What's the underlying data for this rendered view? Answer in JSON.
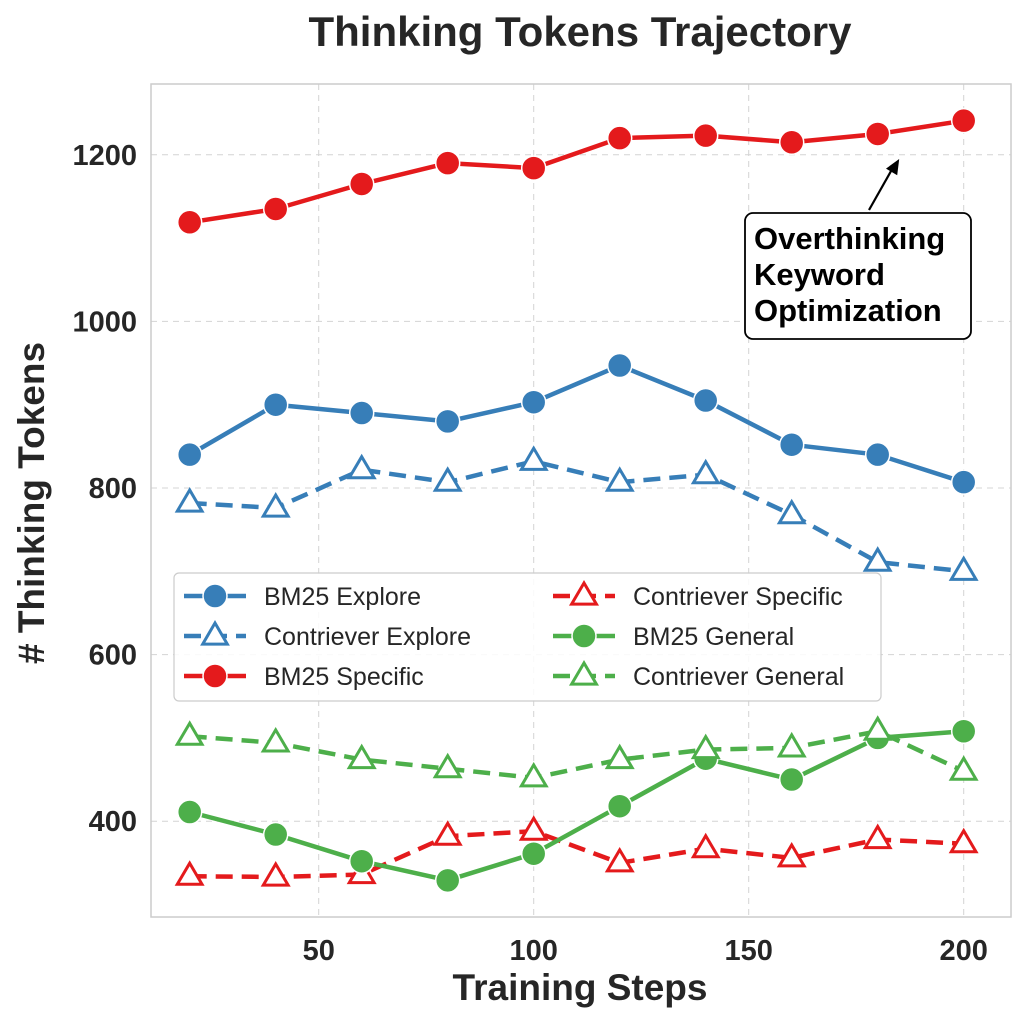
{
  "chart_data": {
    "type": "line",
    "title": "Thinking Tokens Trajectory",
    "xlabel": "Training Steps",
    "ylabel": "# Thinking Tokens",
    "xlim": [
      11,
      211
    ],
    "ylim": [
      285,
      1285
    ],
    "xticks": [
      50,
      100,
      150,
      200
    ],
    "yticks": [
      400,
      600,
      800,
      1000,
      1200
    ],
    "grid": true,
    "legend_position": "center-left",
    "legend_columns": 2,
    "x": [
      20,
      40,
      60,
      80,
      100,
      120,
      140,
      160,
      180,
      200
    ],
    "series": [
      {
        "name": "BM25 Explore",
        "color": "#377eb8",
        "style": "solid",
        "marker": "circle",
        "values": [
          840,
          900,
          890,
          880,
          903,
          947,
          905,
          852,
          840,
          807
        ]
      },
      {
        "name": "Contriever Explore",
        "color": "#377eb8",
        "style": "dashed",
        "marker": "triangle",
        "values": [
          782,
          776,
          822,
          807,
          832,
          807,
          816,
          768,
          711,
          700
        ]
      },
      {
        "name": "BM25 Specific",
        "color": "#e41a1c",
        "style": "solid",
        "marker": "circle",
        "values": [
          1119,
          1135,
          1165,
          1190,
          1184,
          1220,
          1223,
          1215,
          1225,
          1241
        ]
      },
      {
        "name": "Contriever Specific",
        "color": "#e41a1c",
        "style": "dashed",
        "marker": "triangle",
        "values": [
          334,
          333,
          336,
          382,
          388,
          350,
          367,
          356,
          378,
          373
        ]
      },
      {
        "name": "BM25 General",
        "color": "#4daf4a",
        "style": "solid",
        "marker": "circle",
        "values": [
          411,
          384,
          352,
          329,
          361,
          418,
          475,
          450,
          500,
          508
        ]
      },
      {
        "name": "Contriever General",
        "color": "#4daf4a",
        "style": "dashed",
        "marker": "triangle",
        "values": [
          502,
          494,
          474,
          463,
          452,
          474,
          486,
          488,
          508,
          460
        ]
      }
    ],
    "annotation": {
      "lines": [
        "Overthinking",
        "Keyword",
        "Optimization"
      ],
      "arrow_target": [
        185,
        1195
      ]
    }
  }
}
